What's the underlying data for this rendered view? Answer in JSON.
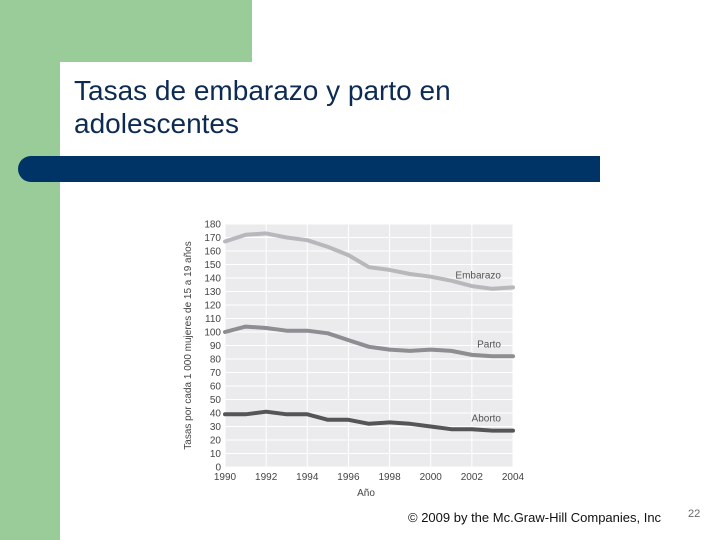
{
  "slide": {
    "title_line1": "Tasas de embarazo y parto en",
    "title_line2": "adolescentes",
    "footer": "© 2009 by the Mc.Graw-Hill Companies, Inc",
    "page_number": "22"
  },
  "colors": {
    "green": "#99cc99",
    "title_bar": "#003366",
    "title_text": "#0d2b52",
    "embarazo": "#b8b8bc",
    "parto": "#8d8d92",
    "aborto": "#555558"
  },
  "chart_data": {
    "type": "line",
    "title": "",
    "xlabel": "Año",
    "ylabel": "Tasas por cada 1 000 mujeres de 15 a 19 años",
    "xlim": [
      1990,
      2004
    ],
    "ylim": [
      0,
      180
    ],
    "yticks": [
      0,
      10,
      20,
      30,
      40,
      50,
      60,
      70,
      80,
      90,
      100,
      110,
      120,
      130,
      140,
      150,
      160,
      170,
      180
    ],
    "xticks": [
      1990,
      1992,
      1994,
      1996,
      1998,
      2000,
      2002,
      2004
    ],
    "xtick_labels": [
      "1990",
      "1992",
      "1994",
      "1996",
      "1998",
      "2000",
      "2002",
      "2004"
    ],
    "grid": true,
    "x": [
      1990,
      1991,
      1992,
      1993,
      1994,
      1995,
      1996,
      1997,
      1998,
      1999,
      2000,
      2001,
      2002,
      2003,
      2004
    ],
    "series": [
      {
        "name": "Embarazo",
        "values": [
          167,
          172,
          173,
          170,
          168,
          163,
          157,
          148,
          146,
          143,
          141,
          138,
          134,
          132,
          133
        ],
        "color": "#b8b8bc"
      },
      {
        "name": "Parto",
        "values": [
          100,
          104,
          103,
          101,
          101,
          99,
          94,
          89,
          87,
          86,
          87,
          86,
          83,
          82,
          82
        ],
        "color": "#8d8d92"
      },
      {
        "name": "Aborto",
        "values": [
          39,
          39,
          41,
          39,
          39,
          35,
          35,
          32,
          33,
          32,
          30,
          28,
          28,
          27,
          27
        ],
        "color": "#555558"
      }
    ]
  }
}
